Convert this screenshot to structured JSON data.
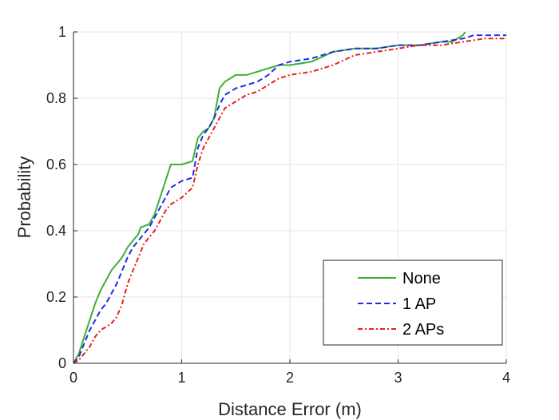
{
  "chart_data": {
    "type": "line",
    "title": "",
    "xlabel": "Distance Error (m)",
    "ylabel": "Probability",
    "xlim": [
      0,
      4
    ],
    "ylim": [
      0,
      1
    ],
    "xticks": [
      0,
      1,
      2,
      3,
      4
    ],
    "yticks": [
      0,
      0.2,
      0.4,
      0.6,
      0.8,
      1
    ],
    "xtick_labels": [
      "0",
      "1",
      "2",
      "3",
      "4"
    ],
    "ytick_labels": [
      "0",
      "0.2",
      "0.4",
      "0.6",
      "0.8",
      "1"
    ],
    "grid": true,
    "legend_position": "bottom-right",
    "series": [
      {
        "name": "None",
        "color": "#3cb034",
        "style": "solid",
        "x": [
          0,
          0.05,
          0.1,
          0.15,
          0.2,
          0.25,
          0.3,
          0.35,
          0.4,
          0.45,
          0.5,
          0.55,
          0.6,
          0.62,
          0.7,
          0.75,
          0.8,
          0.85,
          0.9,
          1.0,
          1.1,
          1.15,
          1.2,
          1.25,
          1.3,
          1.35,
          1.4,
          1.45,
          1.5,
          1.6,
          1.7,
          1.8,
          1.9,
          2.0,
          2.2,
          2.4,
          2.6,
          2.8,
          3.0,
          3.2,
          3.4,
          3.5,
          3.6,
          3.62
        ],
        "y": [
          0,
          0.03,
          0.08,
          0.13,
          0.18,
          0.22,
          0.25,
          0.28,
          0.3,
          0.32,
          0.35,
          0.37,
          0.39,
          0.41,
          0.42,
          0.45,
          0.5,
          0.55,
          0.6,
          0.6,
          0.61,
          0.68,
          0.7,
          0.71,
          0.74,
          0.83,
          0.85,
          0.86,
          0.87,
          0.87,
          0.88,
          0.89,
          0.9,
          0.9,
          0.91,
          0.94,
          0.95,
          0.95,
          0.96,
          0.96,
          0.97,
          0.97,
          0.99,
          1.0
        ]
      },
      {
        "name": "1 AP",
        "color": "#1f2de6",
        "style": "dashed",
        "x": [
          0,
          0.05,
          0.1,
          0.15,
          0.2,
          0.25,
          0.3,
          0.35,
          0.4,
          0.45,
          0.5,
          0.55,
          0.6,
          0.65,
          0.7,
          0.75,
          0.8,
          0.85,
          0.9,
          1.0,
          1.1,
          1.15,
          1.2,
          1.25,
          1.3,
          1.35,
          1.4,
          1.5,
          1.6,
          1.7,
          1.8,
          1.9,
          2.0,
          2.2,
          2.4,
          2.6,
          2.8,
          3.0,
          3.2,
          3.4,
          3.6,
          3.7,
          3.8,
          4.0
        ],
        "y": [
          0,
          0.02,
          0.06,
          0.1,
          0.13,
          0.16,
          0.18,
          0.21,
          0.24,
          0.28,
          0.32,
          0.35,
          0.37,
          0.39,
          0.41,
          0.44,
          0.47,
          0.5,
          0.53,
          0.55,
          0.56,
          0.65,
          0.69,
          0.71,
          0.74,
          0.78,
          0.81,
          0.83,
          0.84,
          0.85,
          0.87,
          0.9,
          0.91,
          0.92,
          0.94,
          0.95,
          0.95,
          0.96,
          0.96,
          0.97,
          0.98,
          0.99,
          0.99,
          0.99
        ]
      },
      {
        "name": "2 APs",
        "color": "#e8201c",
        "style": "dash-dot",
        "x": [
          0,
          0.05,
          0.1,
          0.15,
          0.2,
          0.25,
          0.3,
          0.35,
          0.4,
          0.45,
          0.5,
          0.55,
          0.6,
          0.65,
          0.7,
          0.75,
          0.8,
          0.85,
          0.9,
          1.0,
          1.1,
          1.15,
          1.2,
          1.25,
          1.3,
          1.35,
          1.4,
          1.5,
          1.6,
          1.7,
          1.8,
          1.9,
          2.0,
          2.2,
          2.4,
          2.6,
          2.8,
          3.0,
          3.2,
          3.4,
          3.6,
          3.8,
          4.0
        ],
        "y": [
          0,
          0.01,
          0.03,
          0.05,
          0.08,
          0.1,
          0.11,
          0.12,
          0.14,
          0.18,
          0.24,
          0.28,
          0.32,
          0.36,
          0.38,
          0.4,
          0.43,
          0.46,
          0.48,
          0.5,
          0.53,
          0.6,
          0.65,
          0.68,
          0.71,
          0.74,
          0.77,
          0.79,
          0.81,
          0.82,
          0.84,
          0.86,
          0.87,
          0.88,
          0.9,
          0.93,
          0.94,
          0.95,
          0.96,
          0.96,
          0.97,
          0.98,
          0.98
        ]
      }
    ]
  }
}
